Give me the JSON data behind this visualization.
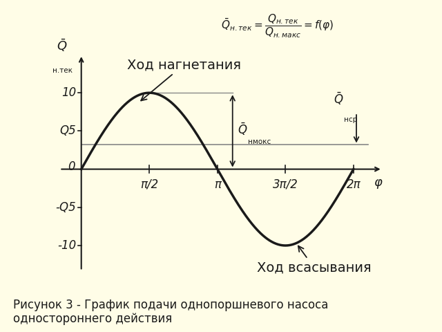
{
  "background_color": "#FFFDE7",
  "plot_bg_color": "#FFFFFF",
  "x_start": 0.0,
  "x_end": 6.2832,
  "ylim": [
    -1.35,
    1.52
  ],
  "xlim": [
    -0.55,
    7.0
  ],
  "yticks_vals": [
    -1.0,
    -0.5,
    0.5,
    1.0
  ],
  "yticks_labels": [
    "-10",
    "-Q5",
    "Q5",
    "10"
  ],
  "xticks_vals": [
    1.5707963,
    3.14159265,
    4.71238898,
    6.2831853
  ],
  "xticks_labels": [
    "π/2",
    "π",
    "3π/2",
    "2π"
  ],
  "xlabel_text": "φ",
  "label_nagnetaniya": "Ход нагнетания",
  "label_vsasyvaniya": "Ход всасывания",
  "q_avg_line": 0.318,
  "line_color": "#1a1a1a",
  "font_size_ticks": 12,
  "font_size_annot": 13,
  "caption": "Рисунок 3 - График подачи однопоршневого насоса\nодностороннего действия"
}
